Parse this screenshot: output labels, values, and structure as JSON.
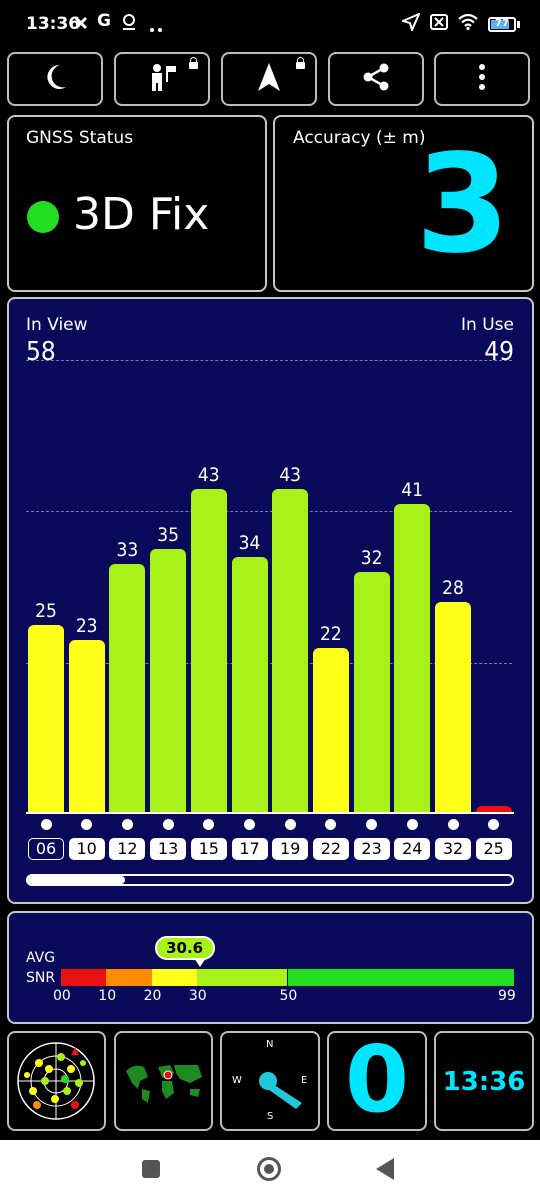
{
  "status_bar": {
    "time": "13:36",
    "left_icons": [
      "x-icon",
      "google-icon",
      "location-pin-icon",
      "more-dots-icon"
    ],
    "right_icons": [
      "navigation-arrow-icon",
      "sim-off-icon",
      "wifi-icon",
      "battery-icon"
    ],
    "battery": "77"
  },
  "toolbar": {
    "buttons": [
      "night-mode-icon",
      "person-flag-icon",
      "navigation-arrow-icon",
      "share-icon",
      "more-vert-icon"
    ]
  },
  "gnss": {
    "label": "GNSS Status",
    "status": "3D Fix",
    "status_color": "#22dd22"
  },
  "accuracy": {
    "label": "Accuracy (± m)",
    "value": "3",
    "color": "#00e5ff"
  },
  "sky": {
    "in_view_label": "In View",
    "in_view": "58",
    "in_use_label": "In Use",
    "in_use": "49"
  },
  "chart_data": {
    "type": "bar",
    "categories": [
      "06",
      "10",
      "12",
      "13",
      "15",
      "17",
      "19",
      "22",
      "23",
      "24",
      "32",
      "25"
    ],
    "values": [
      25,
      23,
      33,
      35,
      43,
      34,
      43,
      22,
      32,
      41,
      28,
      1
    ],
    "value_labels": [
      "25",
      "23",
      "33",
      "35",
      "43",
      "34",
      "43",
      "22",
      "32",
      "41",
      "28",
      ""
    ],
    "colors": [
      "#ffff1a",
      "#ffff1a",
      "#a8f21a",
      "#a8f21a",
      "#a8f21a",
      "#a8f21a",
      "#a8f21a",
      "#ffff1a",
      "#a8f21a",
      "#a8f21a",
      "#ffff1a",
      "#e81010"
    ],
    "selected": "06",
    "ylim": [
      0,
      60
    ],
    "grid_values": [
      20,
      40,
      60
    ],
    "grid": true
  },
  "scroll": {
    "position": 0.2
  },
  "snr": {
    "label1": "AVG",
    "label2": "SNR",
    "avg": "30.6",
    "avg_value": 30.6,
    "ticks": [
      "00",
      "10",
      "20",
      "30",
      "50",
      "99"
    ],
    "segments": [
      {
        "from": 0,
        "to": 10,
        "color": "#e81010"
      },
      {
        "from": 10,
        "to": 20,
        "color": "#ff8c00"
      },
      {
        "from": 20,
        "to": 30,
        "color": "#ffff1a"
      },
      {
        "from": 30,
        "to": 50,
        "color": "#a8f21a"
      },
      {
        "from": 50,
        "to": 99,
        "color": "#22dd22"
      }
    ]
  },
  "tiles": {
    "radar": "radar-view-icon",
    "map": "world-map-icon",
    "compass": {
      "n": "N",
      "e": "E",
      "s": "S",
      "w": "W"
    },
    "counter": "0",
    "counter_color": "#00e5ff",
    "clock": "13:36"
  },
  "nav": [
    "recents-button",
    "home-button",
    "back-button"
  ]
}
